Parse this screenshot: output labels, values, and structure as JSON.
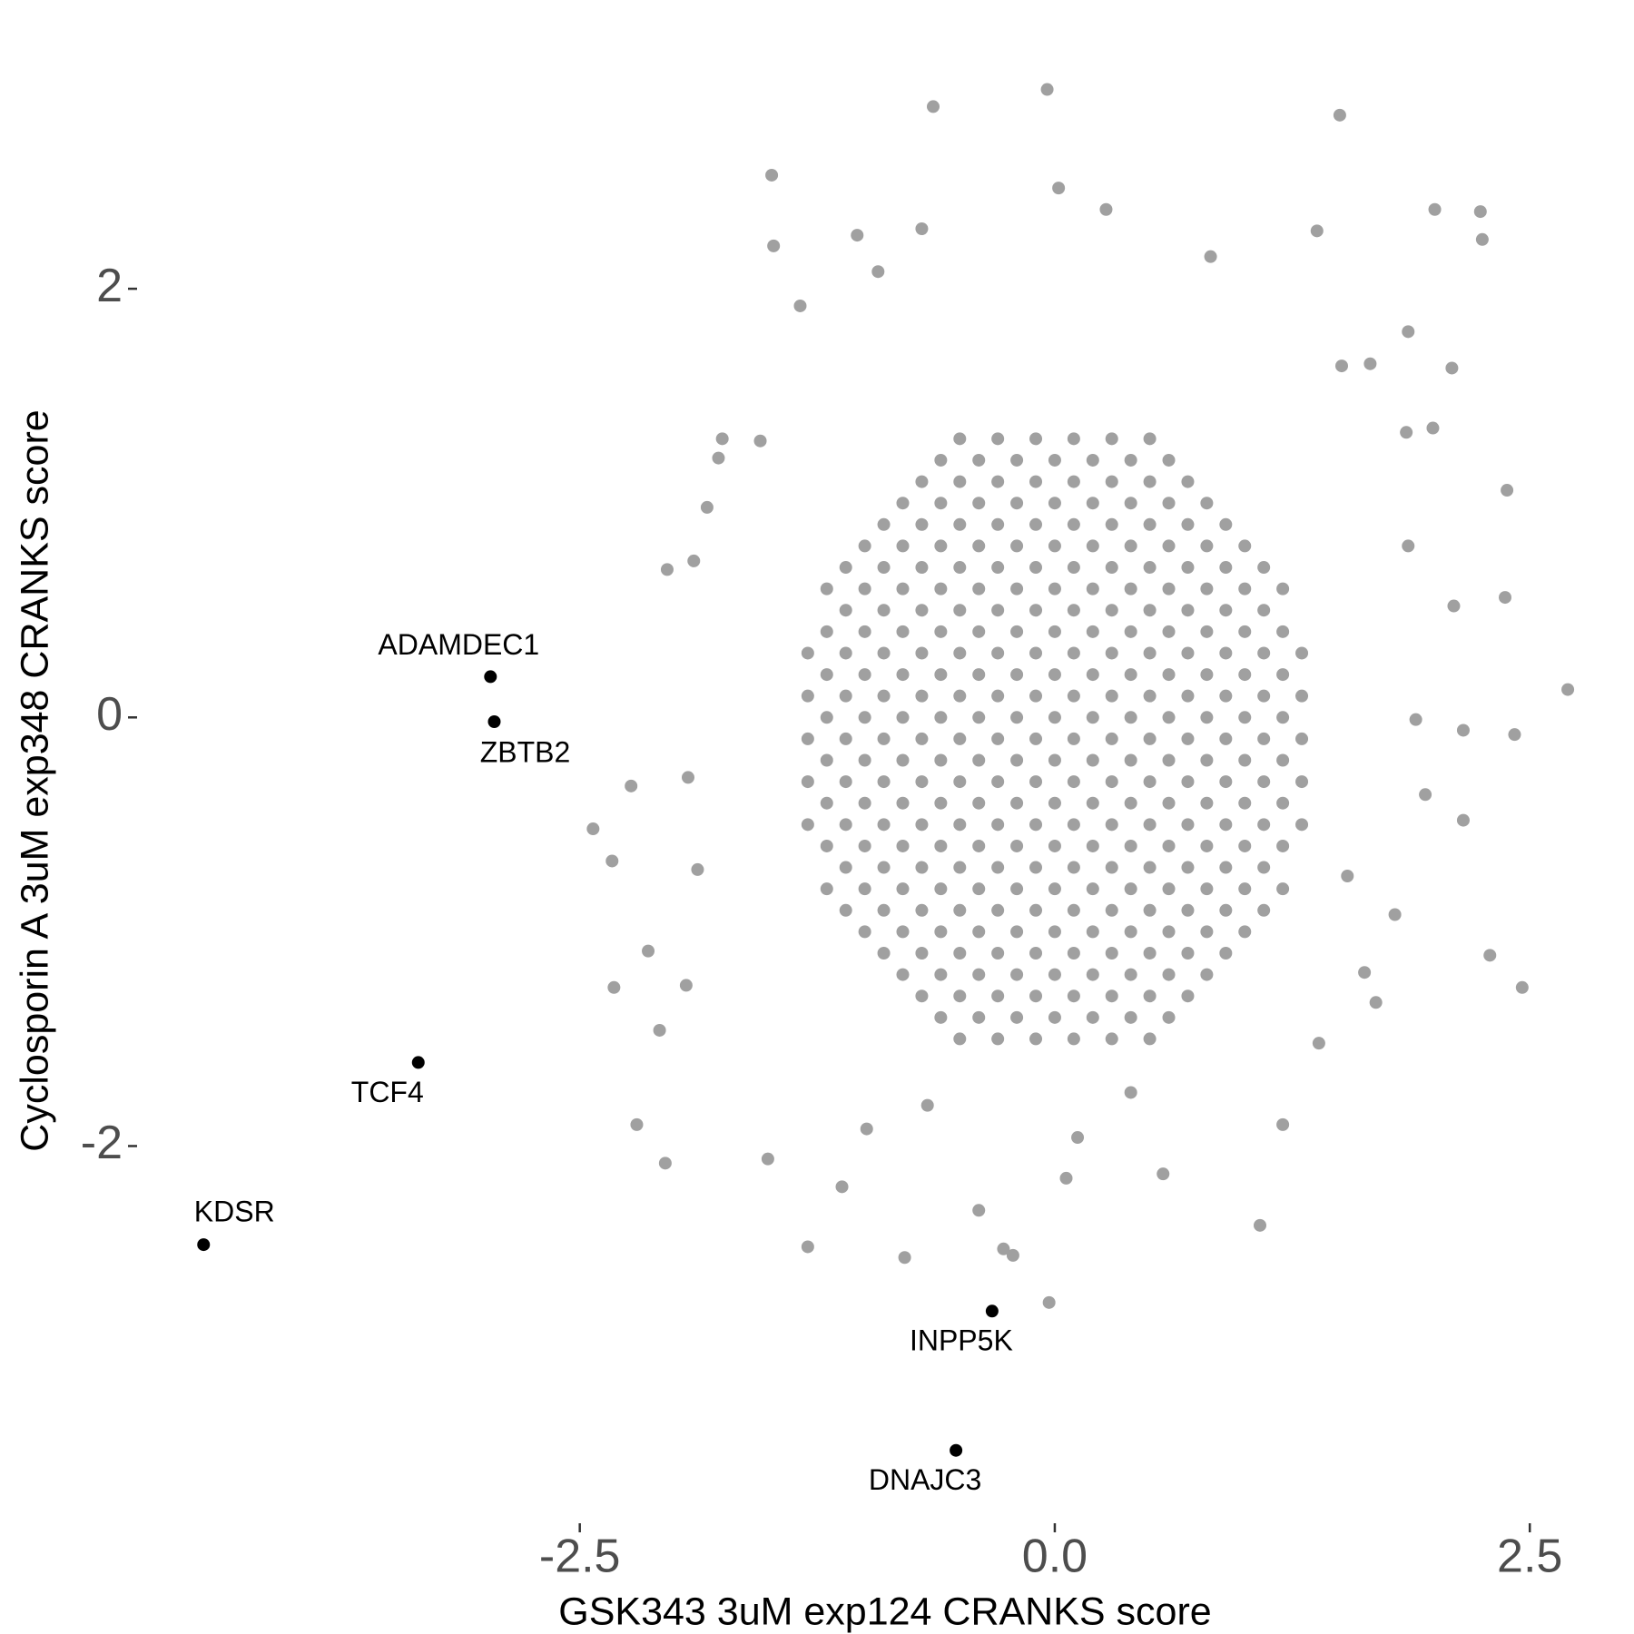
{
  "chart_data": {
    "type": "scatter",
    "x_label": "GSK343 3uM exp124 CRANKS score",
    "y_label": "Cyclosporin A 3uM exp348 CRANKS score",
    "xlim": [
      -4.83,
      2.8
    ],
    "ylim": [
      -3.76,
      3.0
    ],
    "xticks": [
      -2.5,
      {
        "value": 0,
        "label": "0.0"
      },
      2.5
    ],
    "yticks": [
      -2,
      0,
      2
    ],
    "grid": false,
    "series": [
      {
        "color": "#a0a0a0",
        "x": [
          -0.04,
          -0.64,
          1.5,
          -1.49,
          0.02,
          2.0,
          2.24,
          2.25,
          -1.48,
          -1.04,
          -0.7,
          0.27,
          1.38,
          0.82,
          -0.93,
          -1.34,
          1.86,
          2.09,
          1.99,
          2.38,
          2.37,
          2.7,
          2.15,
          2.42,
          2.15,
          2.29,
          2.46,
          1.69,
          1.08,
          0.57,
          0.06,
          -0.03,
          -0.22,
          -0.27,
          -0.4,
          -0.79,
          -1.3,
          -1.12,
          -1.51,
          -2.05,
          -2.2,
          -2.32,
          -2.33,
          -2.43,
          -2.23,
          -2.04,
          -1.9,
          -2.14,
          -2.08,
          1.2,
          1.39,
          1.63,
          1.95,
          1.9,
          1.86,
          2.1,
          1.85,
          1.51,
          1.66,
          0.4,
          0.12,
          -0.67,
          -0.99,
          -1.75,
          -1.77,
          -1.55,
          -1.83,
          -1.93,
          -1.88,
          -1.94,
          1.54,
          1.79,
          -0.5,
          -0.3,
          -0.1,
          0.1,
          0.3,
          0.5,
          -0.7,
          -0.5,
          -0.3,
          -0.1,
          0.1,
          0.3,
          0.5,
          0.7,
          -0.9,
          -0.7,
          -0.5,
          -0.3,
          -0.1,
          0.1,
          0.3,
          0.5,
          0.7,
          0.9,
          -1.1,
          -0.9,
          -0.7,
          -0.5,
          -0.3,
          -0.1,
          0.1,
          0.3,
          0.5,
          0.7,
          0.9,
          1.1,
          -1.1,
          -0.9,
          -0.7,
          -0.5,
          -0.3,
          -0.1,
          0.1,
          0.3,
          0.5,
          0.7,
          0.9,
          1.1,
          -1.3,
          -1.1,
          -0.9,
          -0.7,
          -0.5,
          -0.3,
          -0.1,
          0.1,
          0.3,
          0.5,
          0.7,
          0.9,
          1.1,
          1.3,
          -1.3,
          -1.1,
          -0.9,
          -0.7,
          -0.5,
          -0.3,
          -0.1,
          0.1,
          0.3,
          0.5,
          0.7,
          0.9,
          1.1,
          1.3,
          -1.3,
          -1.1,
          -0.9,
          -0.7,
          -0.5,
          -0.3,
          -0.1,
          0.1,
          0.3,
          0.5,
          0.7,
          0.9,
          1.1,
          1.3,
          -1.3,
          -1.1,
          -0.9,
          -0.7,
          -0.5,
          -0.3,
          -0.1,
          0.1,
          0.3,
          0.5,
          0.7,
          0.9,
          1.1,
          1.3,
          -1.3,
          -1.1,
          -0.9,
          -0.7,
          -0.5,
          -0.3,
          -0.1,
          0.1,
          0.3,
          0.5,
          0.7,
          0.9,
          1.1,
          1.3,
          -1.1,
          -0.9,
          -0.7,
          -0.5,
          -0.3,
          -0.1,
          0.1,
          0.3,
          0.5,
          0.7,
          0.9,
          1.1,
          -1.1,
          -0.9,
          -0.7,
          -0.5,
          -0.3,
          -0.1,
          0.1,
          0.3,
          0.5,
          0.7,
          0.9,
          1.1,
          -0.9,
          -0.7,
          -0.5,
          -0.3,
          -0.1,
          0.1,
          0.3,
          0.5,
          0.7,
          0.9,
          -0.7,
          -0.5,
          -0.3,
          -0.1,
          0.1,
          0.3,
          0.5,
          0.7,
          -0.5,
          -0.3,
          -0.1,
          0.1,
          0.3,
          0.5,
          -0.6,
          -0.4,
          -0.2,
          0,
          0.2,
          0.4,
          0.6,
          -0.8,
          -0.6,
          -0.4,
          -0.2,
          0,
          0.2,
          0.4,
          0.6,
          0.8,
          -1,
          -0.8,
          -0.6,
          -0.4,
          -0.2,
          0,
          0.2,
          0.4,
          0.6,
          0.8,
          1,
          -1.2,
          -1,
          -0.8,
          -0.6,
          -0.4,
          -0.2,
          0,
          0.2,
          0.4,
          0.6,
          0.8,
          1,
          1.2,
          -1.2,
          -1,
          -0.8,
          -0.6,
          -0.4,
          -0.2,
          0,
          0.2,
          0.4,
          0.6,
          0.8,
          1,
          1.2,
          -1.2,
          -1,
          -0.8,
          -0.6,
          -0.4,
          -0.2,
          0,
          0.2,
          0.4,
          0.6,
          0.8,
          1,
          1.2,
          -1.2,
          -1,
          -0.8,
          -0.6,
          -0.4,
          -0.2,
          0,
          0.2,
          0.4,
          0.6,
          0.8,
          1,
          1.2,
          -1.2,
          -1,
          -0.8,
          -0.6,
          -0.4,
          -0.2,
          0,
          0.2,
          0.4,
          0.6,
          0.8,
          1,
          1.2,
          -1.2,
          -1,
          -0.8,
          -0.6,
          -0.4,
          -0.2,
          0,
          0.2,
          0.4,
          0.6,
          0.8,
          1,
          1.2,
          -1.2,
          -1,
          -0.8,
          -0.6,
          -0.4,
          -0.2,
          0,
          0.2,
          0.4,
          0.6,
          0.8,
          1,
          1.2,
          -1.2,
          -1,
          -0.8,
          -0.6,
          -0.4,
          -0.2,
          0,
          0.2,
          0.4,
          0.6,
          0.8,
          1,
          1.2,
          -1,
          -0.8,
          -0.6,
          -0.4,
          -0.2,
          0,
          0.2,
          0.4,
          0.6,
          0.8,
          1,
          -0.8,
          -0.6,
          -0.4,
          -0.2,
          0,
          0.2,
          0.4,
          0.6,
          0.8,
          -0.6,
          -0.4,
          -0.2,
          0,
          0.2,
          0.4,
          0.6
        ],
        "values": [
          2.93,
          2.85,
          2.81,
          2.53,
          2.47,
          2.37,
          2.36,
          2.23,
          2.2,
          2.25,
          2.28,
          2.37,
          2.27,
          2.15,
          2.08,
          1.92,
          1.8,
          1.63,
          1.35,
          1.06,
          0.56,
          0.13,
          -0.06,
          -0.08,
          -0.48,
          -1.11,
          -1.26,
          -1.33,
          -2.37,
          -2.13,
          -2.15,
          -2.73,
          -2.51,
          -2.48,
          -2.3,
          -2.52,
          -2.47,
          -2.19,
          -2.06,
          -2.08,
          -1.9,
          -1.26,
          -0.67,
          -0.52,
          -0.32,
          0.69,
          0.73,
          -1.09,
          -1.46,
          -1.9,
          -1.52,
          -1.19,
          -0.36,
          -0.01,
          0.8,
          0.52,
          1.33,
          1.64,
          1.65,
          -1.75,
          -1.96,
          -1.81,
          -1.92,
          1.3,
          1.21,
          1.29,
          0.98,
          -0.28,
          -0.71,
          -1.25,
          -0.74,
          -0.92,
          -1.5,
          -1.5,
          -1.5,
          -1.5,
          -1.5,
          -1.5,
          -1.3,
          -1.3,
          -1.3,
          -1.3,
          -1.3,
          -1.3,
          -1.3,
          -1.3,
          -1.1,
          -1.1,
          -1.1,
          -1.1,
          -1.1,
          -1.1,
          -1.1,
          -1.1,
          -1.1,
          -1.1,
          -0.9,
          -0.9,
          -0.9,
          -0.9,
          -0.9,
          -0.9,
          -0.9,
          -0.9,
          -0.9,
          -0.9,
          -0.9,
          -0.9,
          -0.7,
          -0.7,
          -0.7,
          -0.7,
          -0.7,
          -0.7,
          -0.7,
          -0.7,
          -0.7,
          -0.7,
          -0.7,
          -0.7,
          -0.5,
          -0.5,
          -0.5,
          -0.5,
          -0.5,
          -0.5,
          -0.5,
          -0.5,
          -0.5,
          -0.5,
          -0.5,
          -0.5,
          -0.5,
          -0.5,
          -0.3,
          -0.3,
          -0.3,
          -0.3,
          -0.3,
          -0.3,
          -0.3,
          -0.3,
          -0.3,
          -0.3,
          -0.3,
          -0.3,
          -0.3,
          -0.3,
          -0.1,
          -0.1,
          -0.1,
          -0.1,
          -0.1,
          -0.1,
          -0.1,
          -0.1,
          -0.1,
          -0.1,
          -0.1,
          -0.1,
          -0.1,
          -0.1,
          0.1,
          0.1,
          0.1,
          0.1,
          0.1,
          0.1,
          0.1,
          0.1,
          0.1,
          0.1,
          0.1,
          0.1,
          0.1,
          0.1,
          0.3,
          0.3,
          0.3,
          0.3,
          0.3,
          0.3,
          0.3,
          0.3,
          0.3,
          0.3,
          0.3,
          0.3,
          0.3,
          0.3,
          0.5,
          0.5,
          0.5,
          0.5,
          0.5,
          0.5,
          0.5,
          0.5,
          0.5,
          0.5,
          0.5,
          0.5,
          0.7,
          0.7,
          0.7,
          0.7,
          0.7,
          0.7,
          0.7,
          0.7,
          0.7,
          0.7,
          0.7,
          0.7,
          0.9,
          0.9,
          0.9,
          0.9,
          0.9,
          0.9,
          0.9,
          0.9,
          0.9,
          0.9,
          1.1,
          1.1,
          1.1,
          1.1,
          1.1,
          1.1,
          1.1,
          1.1,
          1.3,
          1.3,
          1.3,
          1.3,
          1.3,
          1.3,
          -1.4,
          -1.4,
          -1.4,
          -1.4,
          -1.4,
          -1.4,
          -1.4,
          -1.2,
          -1.2,
          -1.2,
          -1.2,
          -1.2,
          -1.2,
          -1.2,
          -1.2,
          -1.2,
          -1,
          -1,
          -1,
          -1,
          -1,
          -1,
          -1,
          -1,
          -1,
          -1,
          -1,
          -0.8,
          -0.8,
          -0.8,
          -0.8,
          -0.8,
          -0.8,
          -0.8,
          -0.8,
          -0.8,
          -0.8,
          -0.8,
          -0.8,
          -0.8,
          -0.6,
          -0.6,
          -0.6,
          -0.6,
          -0.6,
          -0.6,
          -0.6,
          -0.6,
          -0.6,
          -0.6,
          -0.6,
          -0.6,
          -0.6,
          -0.4,
          -0.4,
          -0.4,
          -0.4,
          -0.4,
          -0.4,
          -0.4,
          -0.4,
          -0.4,
          -0.4,
          -0.4,
          -0.4,
          -0.4,
          -0.2,
          -0.2,
          -0.2,
          -0.2,
          -0.2,
          -0.2,
          -0.2,
          -0.2,
          -0.2,
          -0.2,
          -0.2,
          -0.2,
          -0.2,
          0,
          0,
          0,
          0,
          0,
          0,
          0,
          0,
          0,
          0,
          0,
          0,
          0,
          0.2,
          0.2,
          0.2,
          0.2,
          0.2,
          0.2,
          0.2,
          0.2,
          0.2,
          0.2,
          0.2,
          0.2,
          0.2,
          0.4,
          0.4,
          0.4,
          0.4,
          0.4,
          0.4,
          0.4,
          0.4,
          0.4,
          0.4,
          0.4,
          0.4,
          0.4,
          0.6,
          0.6,
          0.6,
          0.6,
          0.6,
          0.6,
          0.6,
          0.6,
          0.6,
          0.6,
          0.6,
          0.6,
          0.6,
          0.8,
          0.8,
          0.8,
          0.8,
          0.8,
          0.8,
          0.8,
          0.8,
          0.8,
          0.8,
          0.8,
          1,
          1,
          1,
          1,
          1,
          1,
          1,
          1,
          1,
          1.2,
          1.2,
          1.2,
          1.2,
          1.2,
          1.2,
          1.2
        ]
      },
      {
        "color": "#000000",
        "labels": [
          "ADAMDEC1",
          "ZBTB2",
          "TCF4",
          "KDSR",
          "INPP5K",
          "DNAJC3"
        ],
        "x": [
          -2.97,
          -2.95,
          -3.35,
          -4.48,
          -0.33,
          -0.52
        ],
        "values": [
          0.19,
          -0.02,
          -1.61,
          -2.46,
          -2.77,
          -3.42
        ]
      }
    ]
  }
}
